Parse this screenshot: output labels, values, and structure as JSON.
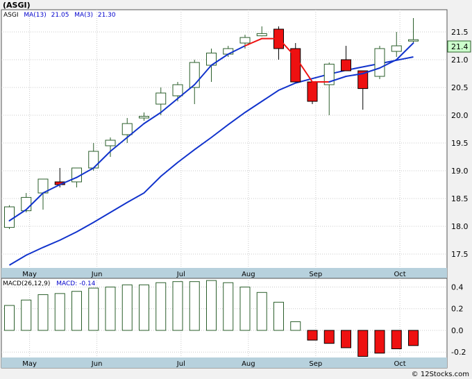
{
  "title": "(ASGI)",
  "watermark": "© 12Stocks.com",
  "colors": {
    "up_fill": "#ffffff",
    "up_stroke": "#2a5e2a",
    "down_fill": "#ee1111",
    "ma_line": "#1133cc",
    "macd_text": "#0000cc",
    "price_tag_bg": "#ccffcc",
    "axis_band": "#b7d1dd"
  },
  "chart_data": [
    {
      "type": "candlestick",
      "title": "(ASGI)",
      "legend": {
        "ticker": "ASGI",
        "ma13_label": "MA(13)",
        "ma13_value": "21.05",
        "ma3_label": "MA(3)",
        "ma3_value": "21.30"
      },
      "last_price_label": "21.4",
      "ylim": [
        17.25,
        21.9
      ],
      "y_ticks": [
        "17.5",
        "18.0",
        "18.5",
        "19.0",
        "19.5",
        "20.0",
        "20.5",
        "21.0",
        "21.5"
      ],
      "x_labels": [
        "May",
        "Jun",
        "Jul",
        "Aug",
        "Sep",
        "Oct"
      ],
      "x_label_positions": [
        1.2,
        5.2,
        10.2,
        14.2,
        18.2,
        23.2
      ],
      "candles": [
        {
          "o": 17.98,
          "h": 18.38,
          "l": 17.95,
          "c": 18.35
        },
        {
          "o": 18.28,
          "h": 18.6,
          "l": 18.25,
          "c": 18.52
        },
        {
          "o": 18.6,
          "h": 18.85,
          "l": 18.3,
          "c": 18.85
        },
        {
          "o": 18.8,
          "h": 19.05,
          "l": 18.7,
          "c": 18.75
        },
        {
          "o": 18.8,
          "h": 19.05,
          "l": 18.7,
          "c": 19.05
        },
        {
          "o": 19.05,
          "h": 19.5,
          "l": 19.0,
          "c": 19.35
        },
        {
          "o": 19.45,
          "h": 19.6,
          "l": 19.25,
          "c": 19.55
        },
        {
          "o": 19.65,
          "h": 19.95,
          "l": 19.5,
          "c": 19.85
        },
        {
          "o": 19.95,
          "h": 20.05,
          "l": 19.9,
          "c": 19.98
        },
        {
          "o": 20.2,
          "h": 20.5,
          "l": 20.0,
          "c": 20.4
        },
        {
          "o": 20.35,
          "h": 20.6,
          "l": 20.25,
          "c": 20.55
        },
        {
          "o": 20.5,
          "h": 21.0,
          "l": 20.2,
          "c": 20.95
        },
        {
          "o": 20.9,
          "h": 21.2,
          "l": 20.6,
          "c": 21.12
        },
        {
          "o": 21.1,
          "h": 21.25,
          "l": 21.05,
          "c": 21.2
        },
        {
          "o": 21.3,
          "h": 21.45,
          "l": 21.2,
          "c": 21.4
        },
        {
          "o": 21.43,
          "h": 21.6,
          "l": 21.42,
          "c": 21.47
        },
        {
          "o": 21.55,
          "h": 21.6,
          "l": 21.0,
          "c": 21.2
        },
        {
          "o": 21.2,
          "h": 21.3,
          "l": 20.6,
          "c": 20.6
        },
        {
          "o": 20.6,
          "h": 20.6,
          "l": 20.2,
          "c": 20.25
        },
        {
          "o": 20.55,
          "h": 20.95,
          "l": 20.0,
          "c": 20.92
        },
        {
          "o": 21.0,
          "h": 21.25,
          "l": 20.8,
          "c": 20.8
        },
        {
          "o": 20.8,
          "h": 20.8,
          "l": 20.1,
          "c": 20.48
        },
        {
          "o": 20.7,
          "h": 21.25,
          "l": 20.65,
          "c": 21.2
        },
        {
          "o": 21.15,
          "h": 21.5,
          "l": 21.05,
          "c": 21.25
        },
        {
          "o": 21.35,
          "h": 21.75,
          "l": 21.3,
          "c": 21.36
        }
      ],
      "series": [
        {
          "name": "MA(13)",
          "values": [
            17.3,
            17.48,
            17.62,
            17.75,
            17.9,
            18.07,
            18.25,
            18.43,
            18.6,
            18.9,
            19.15,
            19.38,
            19.6,
            19.83,
            20.05,
            20.25,
            20.45,
            20.58,
            20.66,
            20.74,
            20.81,
            20.87,
            20.93,
            20.99,
            21.05
          ]
        },
        {
          "name": "MA(3)",
          "values": [
            18.1,
            18.3,
            18.6,
            18.75,
            18.88,
            19.05,
            19.35,
            19.6,
            19.85,
            20.05,
            20.3,
            20.55,
            20.9,
            21.1,
            21.25,
            21.38,
            21.38,
            21.05,
            20.6,
            20.6,
            20.7,
            20.75,
            20.85,
            21.0,
            21.3
          ]
        }
      ]
    },
    {
      "type": "bar",
      "legend": {
        "label": "MACD(26,12,9)",
        "value_label": "MACD:",
        "value": "-0.14"
      },
      "ylim": [
        -0.25,
        0.48
      ],
      "y_ticks": [
        "0.4",
        "0.2",
        "0.0",
        "-0.2"
      ],
      "x_labels": [
        "May",
        "Jun",
        "Jul",
        "Aug",
        "Sep",
        "Oct"
      ],
      "values": [
        0.23,
        0.28,
        0.33,
        0.34,
        0.36,
        0.39,
        0.4,
        0.42,
        0.42,
        0.44,
        0.45,
        0.45,
        0.46,
        0.44,
        0.4,
        0.35,
        0.26,
        0.08,
        -0.09,
        -0.12,
        -0.16,
        -0.24,
        -0.21,
        -0.17,
        -0.14
      ]
    }
  ]
}
